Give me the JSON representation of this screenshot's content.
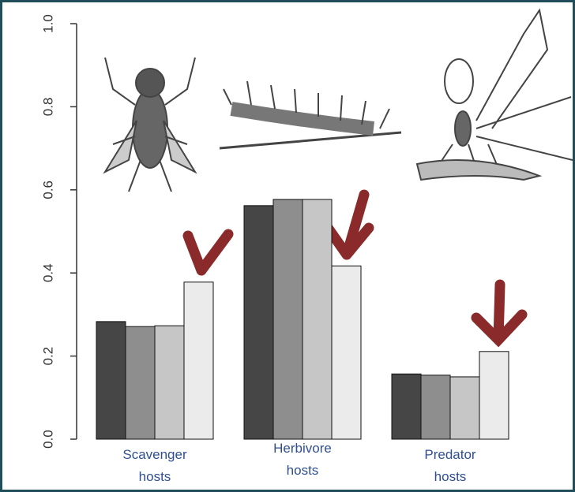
{
  "chart_data": {
    "type": "bar",
    "categories": [
      "Scavenger hosts",
      "Herbivore hosts",
      "Predator hosts"
    ],
    "series": [
      {
        "color": "#464646",
        "values": [
          0.283,
          0.562,
          0.157
        ]
      },
      {
        "color": "#8e8e8e",
        "values": [
          0.271,
          0.577,
          0.154
        ]
      },
      {
        "color": "#c6c6c6",
        "values": [
          0.273,
          0.577,
          0.15
        ]
      },
      {
        "color": "#ebebeb",
        "values": [
          0.378,
          0.417,
          0.211
        ]
      }
    ],
    "ylim": [
      0,
      1
    ],
    "yticks": [
      {
        "value": 0,
        "label": "0.0"
      },
      0.2,
      0.4,
      0.6,
      0.8,
      {
        "value": 1,
        "label": "1.0"
      }
    ]
  }
}
